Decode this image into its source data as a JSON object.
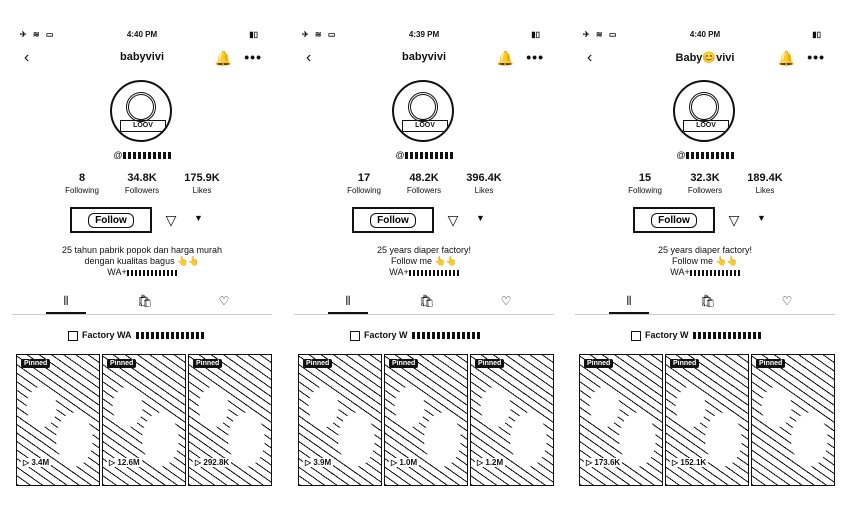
{
  "panels": [
    {
      "status": {
        "time": "4:40 PM"
      },
      "header": {
        "username": "babyvivi"
      },
      "avatar": {
        "badge": "LOOV"
      },
      "handle": "@",
      "stats": [
        {
          "num": "8",
          "label": "Following"
        },
        {
          "num": "34.8K",
          "label": "Followers"
        },
        {
          "num": "175.9K",
          "label": "Likes"
        }
      ],
      "follow_label": "Follow",
      "bio": [
        "25 tahun pabrik popok dan harga murah",
        "dengan kualitas bagus 👆👆",
        "WA+"
      ],
      "factory_label": "Factory WA",
      "videos": [
        {
          "pinned": "Pinned",
          "views": "▷ 3.4M"
        },
        {
          "pinned": "Pinned",
          "views": "▷ 12.6M"
        },
        {
          "pinned": "Pinned",
          "views": "▷ 292.8K"
        }
      ]
    },
    {
      "status": {
        "time": "4:39 PM"
      },
      "header": {
        "username": "babyvivi"
      },
      "avatar": {
        "badge": "LOOV"
      },
      "handle": "@",
      "stats": [
        {
          "num": "17",
          "label": "Following"
        },
        {
          "num": "48.2K",
          "label": "Followers"
        },
        {
          "num": "396.4K",
          "label": "Likes"
        }
      ],
      "follow_label": "Follow",
      "bio": [
        "25 years diaper factory!",
        "Follow me 👆👆",
        "WA+"
      ],
      "factory_label": "Factory W",
      "videos": [
        {
          "pinned": "Pinned",
          "views": "▷ 3.9M"
        },
        {
          "pinned": "Pinned",
          "views": "▷ 1.0M"
        },
        {
          "pinned": "Pinned",
          "views": "▷ 1.2M"
        }
      ]
    },
    {
      "status": {
        "time": "4:40 PM"
      },
      "header": {
        "username": "Baby😊vivi"
      },
      "avatar": {
        "badge": "LOOV"
      },
      "handle": "@",
      "stats": [
        {
          "num": "15",
          "label": "Following"
        },
        {
          "num": "32.3K",
          "label": "Followers"
        },
        {
          "num": "189.4K",
          "label": "Likes"
        }
      ],
      "follow_label": "Follow",
      "bio": [
        "25 years diaper factory!",
        "Follow me 👆👆",
        "WA+"
      ],
      "factory_label": "Factory W",
      "videos": [
        {
          "pinned": "Pinned",
          "views": "▷ 173.6K"
        },
        {
          "pinned": "Pinned",
          "views": "▷ 152.1K"
        },
        {
          "pinned": "Pinned",
          "views": ""
        }
      ]
    }
  ],
  "icons": {
    "back": "back-arrow-icon",
    "bell": "bell-icon",
    "more": "more-icon",
    "share": "share-icon",
    "caret": "caret-down-icon",
    "videos_tab": "grid-icon",
    "shop_tab": "shopping-bag-icon",
    "liked_tab": "liked-icon"
  }
}
